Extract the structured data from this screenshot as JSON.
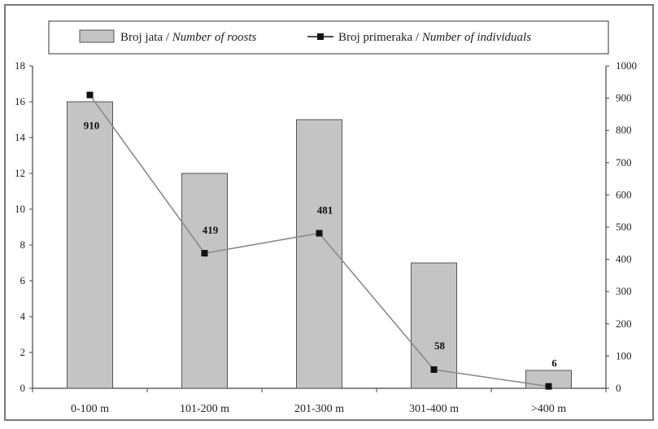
{
  "chart_data": {
    "type": "bar+line",
    "categories": [
      "0-100 m",
      "101-200 m",
      "201-300 m",
      "301-400 m",
      ">400 m"
    ],
    "series": [
      {
        "name": "Broj jata / Number of roosts",
        "kind": "bar",
        "axis": "left",
        "values": [
          16,
          12,
          15,
          7,
          1
        ]
      },
      {
        "name": "Broj primeraka / Number of individuals",
        "kind": "line",
        "axis": "right",
        "values": [
          910,
          419,
          481,
          58,
          6
        ],
        "data_labels": [
          "910",
          "419",
          "481",
          "58",
          "6"
        ]
      }
    ],
    "legend": {
      "bar_prefix": "Broj jata / ",
      "bar_italic": "Number of roosts",
      "line_prefix": "Broj primeraka / ",
      "line_italic": "Number of individuals",
      "position": "top"
    },
    "y_left": {
      "min": 0,
      "max": 18,
      "ticks": [
        "0",
        "2",
        "4",
        "6",
        "8",
        "10",
        "12",
        "14",
        "16",
        "18"
      ]
    },
    "y_right": {
      "min": 0,
      "max": 1000,
      "ticks": [
        "0",
        "100",
        "200",
        "300",
        "400",
        "500",
        "600",
        "700",
        "800",
        "900",
        "1000"
      ]
    },
    "grid": false,
    "colors": {
      "bar_fill": "#c4c4c4",
      "bar_stroke": "#555555",
      "line": "#8a8a8a",
      "marker": "#111111",
      "frame": "#7a7a7a",
      "text": "#222222"
    }
  }
}
